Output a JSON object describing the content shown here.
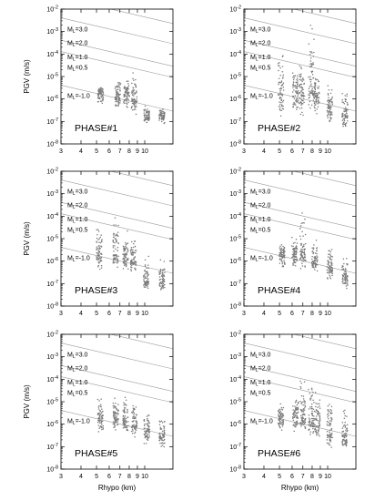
{
  "chart_data": [
    {
      "type": "scatter",
      "title": "PHASE#1",
      "xlabel": "",
      "ylabel": "PGV (m/s)",
      "xscale": "log",
      "yscale": "log",
      "xlim": [
        3,
        15
      ],
      "ylim": [
        1e-08,
        0.01
      ],
      "x_tick_labels": [
        "3",
        "4",
        "5",
        "6",
        "7",
        "8",
        "9",
        "10"
      ],
      "y_tick_labels": [
        "10-8",
        "10-7",
        "10-6",
        "10-5",
        "10-4",
        "10-3",
        "10-2"
      ],
      "magnitude_labels": [
        "3.0",
        "2.0",
        "1.0",
        "0.5",
        "-1.0"
      ],
      "clusters": [
        {
          "x": 5.3,
          "ymin": 5e-07,
          "ymax": 4e-06,
          "center": 1.8e-06
        },
        {
          "x": 6.8,
          "ymin": 2e-07,
          "ymax": 8e-06,
          "center": 1.5e-06
        },
        {
          "x": 7.7,
          "ymin": 3e-07,
          "ymax": 1e-05,
          "center": 1.5e-06
        },
        {
          "x": 8.6,
          "ymin": 2e-07,
          "ymax": 3e-05,
          "center": 1e-06
        },
        {
          "x": 10.3,
          "ymin": 8e-08,
          "ymax": 6e-07,
          "center": 1.6e-07
        },
        {
          "x": 12.8,
          "ymin": 7e-08,
          "ymax": 6e-07,
          "center": 1.8e-07
        }
      ]
    },
    {
      "type": "scatter",
      "title": "PHASE#2",
      "xlabel": "",
      "ylabel": "",
      "xscale": "log",
      "yscale": "log",
      "xlim": [
        3,
        15
      ],
      "ylim": [
        1e-08,
        0.01
      ],
      "x_tick_labels": [
        "3",
        "4",
        "5",
        "6",
        "7",
        "8",
        "9",
        "10"
      ],
      "y_tick_labels": [
        "10-8",
        "10-7",
        "10-6",
        "10-5",
        "10-4",
        "10-3",
        "10-2"
      ],
      "magnitude_labels": [
        "3.0",
        "2.0",
        "1.0",
        "0.5",
        "-1.0"
      ],
      "clusters": [
        {
          "x": 5.1,
          "ymin": 1e-07,
          "ymax": 0.0002,
          "center": 2e-06
        },
        {
          "x": 6.3,
          "ymin": 1e-07,
          "ymax": 5e-05,
          "center": 2.5e-06
        },
        {
          "x": 6.9,
          "ymin": 1e-07,
          "ymax": 0.0001,
          "center": 2e-06
        },
        {
          "x": 7.9,
          "ymin": 2e-07,
          "ymax": 0.003,
          "center": 2.5e-06
        },
        {
          "x": 8.5,
          "ymin": 2e-07,
          "ymax": 2e-05,
          "center": 1.5e-06
        },
        {
          "x": 10.3,
          "ymin": 5e-08,
          "ymax": 5e-06,
          "center": 4e-07
        },
        {
          "x": 12.8,
          "ymin": 4e-08,
          "ymax": 5e-06,
          "center": 2e-07
        }
      ]
    },
    {
      "type": "scatter",
      "title": "PHASE#3",
      "xlabel": "",
      "ylabel": "PGV (m/s)",
      "xscale": "log",
      "yscale": "log",
      "xlim": [
        3,
        15
      ],
      "ylim": [
        1e-08,
        0.01
      ],
      "x_tick_labels": [
        "3",
        "4",
        "5",
        "6",
        "7",
        "8",
        "9",
        "10"
      ],
      "y_tick_labels": [
        "10-8",
        "10-7",
        "10-6",
        "10-5",
        "10-4",
        "10-3",
        "10-2"
      ],
      "magnitude_labels": [
        "3.0",
        "2.0",
        "1.0",
        "0.5",
        "-1.0"
      ],
      "clusters": [
        {
          "x": 5.2,
          "ymin": 2e-07,
          "ymax": 3e-05,
          "center": 2e-06
        },
        {
          "x": 6.6,
          "ymin": 3e-07,
          "ymax": 0.0003,
          "center": 2e-06
        },
        {
          "x": 7.6,
          "ymin": 2e-07,
          "ymax": 3e-05,
          "center": 1.5e-06
        },
        {
          "x": 8.5,
          "ymin": 3e-07,
          "ymax": 2e-05,
          "center": 1e-06
        },
        {
          "x": 10.2,
          "ymin": 5e-08,
          "ymax": 2e-06,
          "center": 1.2e-07
        },
        {
          "x": 12.8,
          "ymin": 4e-08,
          "ymax": 2e-06,
          "center": 1.5e-07
        }
      ]
    },
    {
      "type": "scatter",
      "title": "PHASE#4",
      "xlabel": "",
      "ylabel": "",
      "xscale": "log",
      "yscale": "log",
      "xlim": [
        3,
        15
      ],
      "ylim": [
        1e-08,
        0.01
      ],
      "x_tick_labels": [
        "3",
        "4",
        "5",
        "6",
        "7",
        "8",
        "9",
        "10"
      ],
      "y_tick_labels": [
        "10-8",
        "10-7",
        "10-6",
        "10-5",
        "10-4",
        "10-3",
        "10-2"
      ],
      "magnitude_labels": [
        "3.0",
        "2.0",
        "1.0",
        "0.5",
        "-1.0"
      ],
      "clusters": [
        {
          "x": 5.2,
          "ymin": 3e-07,
          "ymax": 1e-05,
          "center": 2e-06
        },
        {
          "x": 6.2,
          "ymin": 4e-07,
          "ymax": 2e-05,
          "center": 2e-06
        },
        {
          "x": 7.0,
          "ymin": 3e-07,
          "ymax": 0.0002,
          "center": 2e-06
        },
        {
          "x": 8.3,
          "ymin": 2e-07,
          "ymax": 3e-05,
          "center": 1e-06
        },
        {
          "x": 10.3,
          "ymin": 8e-08,
          "ymax": 6e-06,
          "center": 5e-07
        },
        {
          "x": 12.8,
          "ymin": 6e-08,
          "ymax": 2e-06,
          "center": 2e-07
        }
      ]
    },
    {
      "type": "scatter",
      "title": "PHASE#5",
      "xlabel": "Rhypo (km)",
      "ylabel": "PGV (m/s)",
      "xscale": "log",
      "yscale": "log",
      "xlim": [
        3,
        15
      ],
      "ylim": [
        1e-08,
        0.01
      ],
      "x_tick_labels": [
        "3",
        "4",
        "5",
        "6",
        "7",
        "8",
        "9",
        "10"
      ],
      "y_tick_labels": [
        "10-8",
        "10-7",
        "10-6",
        "10-5",
        "10-4",
        "10-3",
        "10-2"
      ],
      "magnitude_labels": [
        "3.0",
        "2.0",
        "1.0",
        "0.5",
        "-1.0"
      ],
      "clusters": [
        {
          "x": 5.3,
          "ymin": 4e-07,
          "ymax": 2e-05,
          "center": 1.8e-06
        },
        {
          "x": 6.6,
          "ymin": 4e-07,
          "ymax": 2e-05,
          "center": 2e-06
        },
        {
          "x": 7.6,
          "ymin": 3e-07,
          "ymax": 3e-05,
          "center": 1.5e-06
        },
        {
          "x": 8.6,
          "ymin": 2e-07,
          "ymax": 2e-05,
          "center": 1e-06
        },
        {
          "x": 10.3,
          "ymin": 1e-07,
          "ymax": 6e-06,
          "center": 4e-07
        },
        {
          "x": 12.8,
          "ymin": 7e-08,
          "ymax": 3e-06,
          "center": 3e-07
        }
      ]
    },
    {
      "type": "scatter",
      "title": "PHASE#6",
      "xlabel": "Rhypo (km)",
      "ylabel": "",
      "xscale": "log",
      "yscale": "log",
      "xlim": [
        3,
        15
      ],
      "ylim": [
        1e-08,
        0.01
      ],
      "x_tick_labels": [
        "3",
        "4",
        "5",
        "6",
        "7",
        "8",
        "9",
        "10"
      ],
      "y_tick_labels": [
        "10-8",
        "10-7",
        "10-6",
        "10-5",
        "10-4",
        "10-3",
        "10-2"
      ],
      "magnitude_labels": [
        "3.0",
        "2.0",
        "1.0",
        "0.5",
        "-1.0"
      ],
      "clusters": [
        {
          "x": 5.1,
          "ymin": 4e-07,
          "ymax": 1e-05,
          "center": 2e-06
        },
        {
          "x": 6.3,
          "ymin": 3e-07,
          "ymax": 4e-05,
          "center": 2.5e-06
        },
        {
          "x": 7.0,
          "ymin": 4e-07,
          "ymax": 0.0003,
          "center": 2e-06
        },
        {
          "x": 7.9,
          "ymin": 3e-07,
          "ymax": 0.0002,
          "center": 1.5e-06
        },
        {
          "x": 8.6,
          "ymin": 2e-07,
          "ymax": 3e-05,
          "center": 1e-06
        },
        {
          "x": 10.3,
          "ymin": 8e-08,
          "ymax": 3e-05,
          "center": 4e-07
        },
        {
          "x": 12.8,
          "ymin": 6e-08,
          "ymax": 5e-06,
          "center": 2e-07
        }
      ]
    }
  ],
  "style": {
    "point_color": "#7a7a7a",
    "line_color": "#9a9a9a",
    "axis_color": "#000000"
  }
}
